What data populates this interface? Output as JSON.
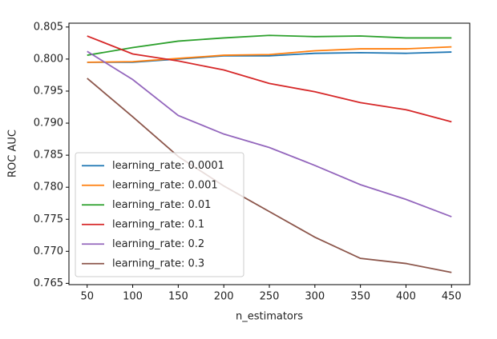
{
  "chart_data": {
    "type": "line",
    "x_label": "n_estimators",
    "y_label": "ROC AUC",
    "x": [
      50,
      100,
      150,
      200,
      250,
      300,
      350,
      400,
      450
    ],
    "series": [
      {
        "name": "learning_rate: 0.0001",
        "color": "#1f77b4",
        "values": [
          0.7995,
          0.7995,
          0.8,
          0.8005,
          0.8005,
          0.8009,
          0.801,
          0.8009,
          0.8011
        ]
      },
      {
        "name": "learning_rate: 0.001",
        "color": "#ff7f0e",
        "values": [
          0.7995,
          0.7996,
          0.8001,
          0.8006,
          0.8007,
          0.8013,
          0.8016,
          0.8016,
          0.8019
        ]
      },
      {
        "name": "learning_rate: 0.01",
        "color": "#2ca02c",
        "values": [
          0.8006,
          0.8018,
          0.8028,
          0.8033,
          0.8037,
          0.8035,
          0.8036,
          0.8033,
          0.8033
        ]
      },
      {
        "name": "learning_rate: 0.1",
        "color": "#d62728",
        "values": [
          0.8036,
          0.8008,
          0.7997,
          0.7983,
          0.7962,
          0.7949,
          0.7932,
          0.7921,
          0.7902
        ]
      },
      {
        "name": "learning_rate: 0.2",
        "color": "#9467bd",
        "values": [
          0.8012,
          0.7968,
          0.7912,
          0.7883,
          0.7862,
          0.7834,
          0.7804,
          0.7781,
          0.7754
        ]
      },
      {
        "name": "learning_rate: 0.3",
        "color": "#8c564b",
        "values": [
          0.797,
          0.791,
          0.7848,
          0.7802,
          0.7762,
          0.7722,
          0.7689,
          0.7681,
          0.7667
        ]
      }
    ],
    "xlim": [
      30,
      470
    ],
    "ylim": [
      0.7648,
      0.8056
    ],
    "xticks": [
      50,
      100,
      150,
      200,
      250,
      300,
      350,
      400,
      450
    ],
    "yticks": [
      0.765,
      {
        "value": 0.77,
        "label": "0.770"
      },
      0.775,
      {
        "value": 0.78,
        "label": "0.780"
      },
      0.785,
      {
        "value": 0.79,
        "label": "0.790"
      },
      0.795,
      {
        "value": 0.8,
        "label": "0.800"
      },
      0.805
    ],
    "legend": "lower left",
    "grid": false
  }
}
